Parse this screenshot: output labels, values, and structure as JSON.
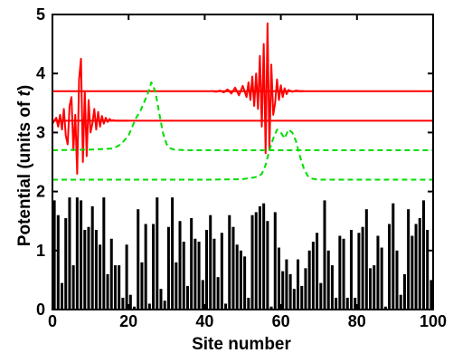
{
  "chart_data": {
    "type": "bar",
    "title": "",
    "xlabel": "Site number",
    "ylabel_prefix": "Potential (units of ",
    "ylabel_symbol": "t",
    "ylabel_suffix": ")",
    "xlim": [
      0,
      100
    ],
    "ylim": [
      0,
      5
    ],
    "xticks": [
      0,
      20,
      40,
      60,
      80,
      100
    ],
    "yticks": [
      0,
      1,
      2,
      3,
      4,
      5
    ],
    "grid": false,
    "legend": "none",
    "colors": {
      "bars": "#000000",
      "wavepacket": "#ff0000",
      "density": "#00dd00",
      "frame": "#000000"
    },
    "bars": {
      "name": "",
      "x": [
        1,
        2,
        3,
        4,
        5,
        6,
        7,
        8,
        9,
        10,
        11,
        12,
        13,
        14,
        15,
        16,
        17,
        18,
        19,
        20,
        21,
        22,
        23,
        24,
        25,
        26,
        27,
        28,
        29,
        30,
        31,
        32,
        33,
        34,
        35,
        36,
        37,
        38,
        39,
        40,
        41,
        42,
        43,
        44,
        45,
        46,
        47,
        48,
        49,
        50,
        51,
        52,
        53,
        54,
        55,
        56,
        57,
        58,
        59,
        60,
        61,
        62,
        63,
        64,
        65,
        66,
        67,
        68,
        69,
        70,
        71,
        72,
        73,
        74,
        75,
        76,
        77,
        78,
        79,
        80,
        81,
        82,
        83,
        84,
        85,
        86,
        87,
        88,
        89,
        90,
        91,
        92,
        93,
        94,
        95,
        96,
        97,
        98,
        99,
        100
      ],
      "values": [
        1.85,
        1.6,
        0.45,
        1.55,
        1.9,
        0.75,
        1.9,
        1.85,
        1.35,
        1.4,
        1.75,
        1.35,
        1.1,
        1.9,
        0.6,
        1.2,
        0.75,
        0.75,
        0.2,
        1.1,
        0.25,
        0.05,
        1.7,
        0.8,
        1.45,
        0.1,
        1.45,
        1.9,
        0.35,
        0.15,
        1.4,
        1.9,
        0.8,
        1.5,
        1.15,
        0.4,
        1.55,
        1.2,
        1.15,
        0.5,
        1.35,
        1.6,
        1.2,
        0.55,
        1.3,
        0.1,
        1.6,
        1.4,
        1.1,
        1.0,
        0.9,
        0.2,
        1.6,
        1.65,
        1.75,
        1.8,
        1.5,
        0.05,
        1.65,
        1.05,
        0.65,
        0.85,
        0.6,
        0.35,
        0.85,
        0.4,
        0.7,
        1.0,
        1.15,
        1.3,
        0.45,
        1.85,
        1.0,
        0.75,
        0.2,
        1.25,
        1.2,
        0.2,
        1.35,
        0.2,
        1.3,
        1.4,
        1.7,
        0.7,
        0.75,
        1.25,
        1.05,
        0.05,
        1.45,
        1.8,
        1.0,
        0.25,
        0.6,
        1.7,
        1.25,
        1.45,
        1.55,
        1.85,
        1.35,
        0.5
      ]
    },
    "horizontal_lines": [
      {
        "name": "",
        "color": "#ff0000",
        "dash": "solid",
        "y": 3.7,
        "x": [
          0,
          100
        ]
      },
      {
        "name": "",
        "color": "#ff0000",
        "dash": "solid",
        "y": 3.2,
        "x": [
          0,
          100
        ]
      }
    ],
    "series": [
      {
        "name": "",
        "color": "#ff0000",
        "dash": "solid",
        "x": [
          0,
          0.5,
          1,
          1.5,
          2,
          2.5,
          3,
          3.5,
          4,
          4.5,
          5,
          5.5,
          6,
          6.5,
          7,
          7.5,
          8,
          8.5,
          9,
          9.5,
          10,
          10.5,
          11,
          11.5,
          12,
          12.5,
          13,
          13.5,
          14,
          14.5,
          15,
          15.5,
          16,
          16.5,
          17,
          17.5,
          18,
          18.5,
          19,
          19.5,
          20
        ],
        "y": [
          3.15,
          3.2,
          3.25,
          3.1,
          3.3,
          3.05,
          3.4,
          2.95,
          2.8,
          3.45,
          3.6,
          2.7,
          3.3,
          2.3,
          3.9,
          4.25,
          2.5,
          3.7,
          2.6,
          3.55,
          3.0,
          3.15,
          3.4,
          3.05,
          3.35,
          3.1,
          3.28,
          3.15,
          3.25,
          3.18,
          3.23,
          3.2,
          3.21,
          3.2,
          3.2,
          3.2,
          3.2,
          3.2,
          3.2,
          3.2,
          3.2
        ]
      },
      {
        "name": "",
        "color": "#ff0000",
        "dash": "solid",
        "x": [
          42,
          43,
          44,
          45,
          46,
          47,
          48,
          49,
          50,
          51,
          51.5,
          52,
          52.5,
          53,
          53.5,
          54,
          54.5,
          55,
          55.5,
          56,
          56.5,
          57,
          57.5,
          58,
          58.5,
          59,
          59.5,
          60,
          60.5,
          61,
          61.5,
          62,
          63,
          64,
          65,
          66
        ],
        "y": [
          3.7,
          3.69,
          3.71,
          3.68,
          3.73,
          3.66,
          3.76,
          3.63,
          3.79,
          3.6,
          3.85,
          3.55,
          3.95,
          3.45,
          4.0,
          3.4,
          4.3,
          3.1,
          4.5,
          2.65,
          4.85,
          2.7,
          4.15,
          3.3,
          3.5,
          3.9,
          3.55,
          3.8,
          3.6,
          3.75,
          3.65,
          3.72,
          3.69,
          3.71,
          3.7,
          3.7
        ]
      },
      {
        "name": "",
        "color": "#00dd00",
        "dash": "dashed",
        "x": [
          0,
          10,
          16,
          18,
          20,
          21,
          22,
          23,
          24,
          25,
          26,
          27,
          28,
          29,
          30,
          31,
          32,
          35,
          40,
          60,
          100
        ],
        "y": [
          2.7,
          2.71,
          2.73,
          2.8,
          2.95,
          3.1,
          3.25,
          3.35,
          3.5,
          3.65,
          3.85,
          3.7,
          3.35,
          3.0,
          2.8,
          2.73,
          2.71,
          2.7,
          2.7,
          2.7,
          2.7
        ]
      },
      {
        "name": "",
        "color": "#00dd00",
        "dash": "dashed",
        "x": [
          0,
          40,
          50,
          54,
          55,
          56,
          57,
          58,
          59,
          60,
          61,
          62,
          63,
          64,
          65,
          66,
          67,
          68,
          70,
          75,
          100
        ],
        "y": [
          2.2,
          2.2,
          2.21,
          2.25,
          2.3,
          2.45,
          2.7,
          2.9,
          3.05,
          3.0,
          2.9,
          3.05,
          3.0,
          2.85,
          2.6,
          2.4,
          2.27,
          2.22,
          2.2,
          2.2,
          2.2
        ]
      }
    ]
  }
}
